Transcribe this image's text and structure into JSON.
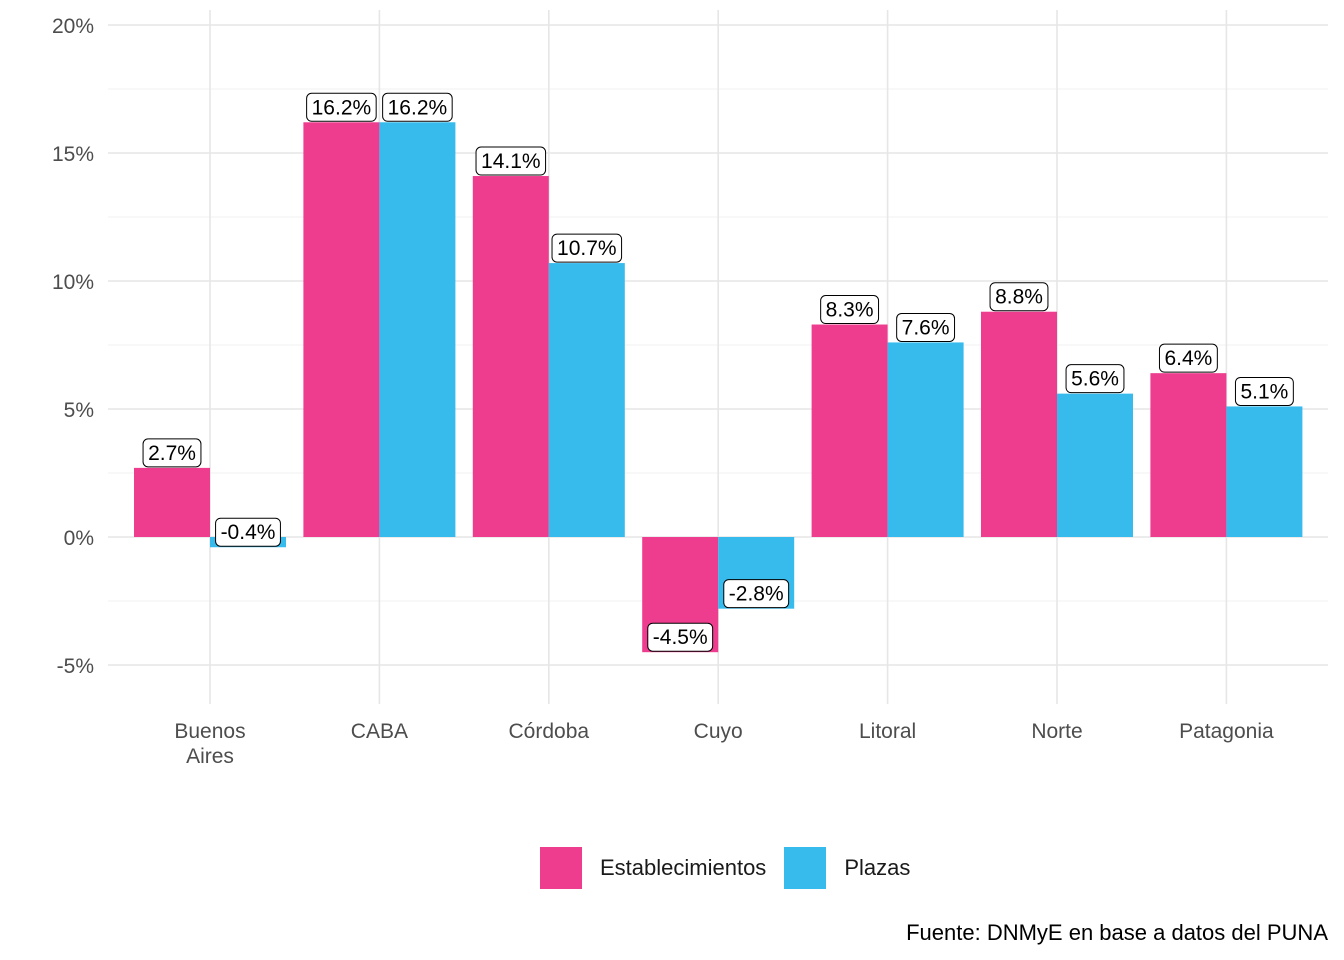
{
  "chart_data": {
    "type": "bar",
    "categories": [
      "Buenos Aires",
      "CABA",
      "Córdoba",
      "Cuyo",
      "Litoral",
      "Norte",
      "Patagonia"
    ],
    "series": [
      {
        "name": "Establecimientos",
        "color": "#ee3d8f",
        "values": [
          2.7,
          16.2,
          14.1,
          -4.5,
          8.3,
          8.8,
          6.4
        ],
        "labels": [
          "2.7%",
          "16.2%",
          "14.1%",
          "-4.5%",
          "8.3%",
          "8.8%",
          "6.4%"
        ]
      },
      {
        "name": "Plazas",
        "color": "#37bbed",
        "values": [
          -0.4,
          16.2,
          10.7,
          -2.8,
          7.6,
          5.6,
          5.1
        ],
        "labels": [
          "-0.4%",
          "16.2%",
          "10.7%",
          "-2.8%",
          "7.6%",
          "5.6%",
          "5.1%"
        ]
      }
    ],
    "yticks": [
      -5,
      0,
      5,
      10,
      15,
      20
    ],
    "ytick_labels": [
      "-5%",
      "0%",
      "5%",
      "10%",
      "15%",
      "20%"
    ],
    "ylim": [
      -6.5,
      20
    ],
    "ylabel": "",
    "xlabel": "",
    "grid": true,
    "legend_position": "bottom"
  },
  "caption": "Fuente: DNMyE en base a datos del PUNA"
}
